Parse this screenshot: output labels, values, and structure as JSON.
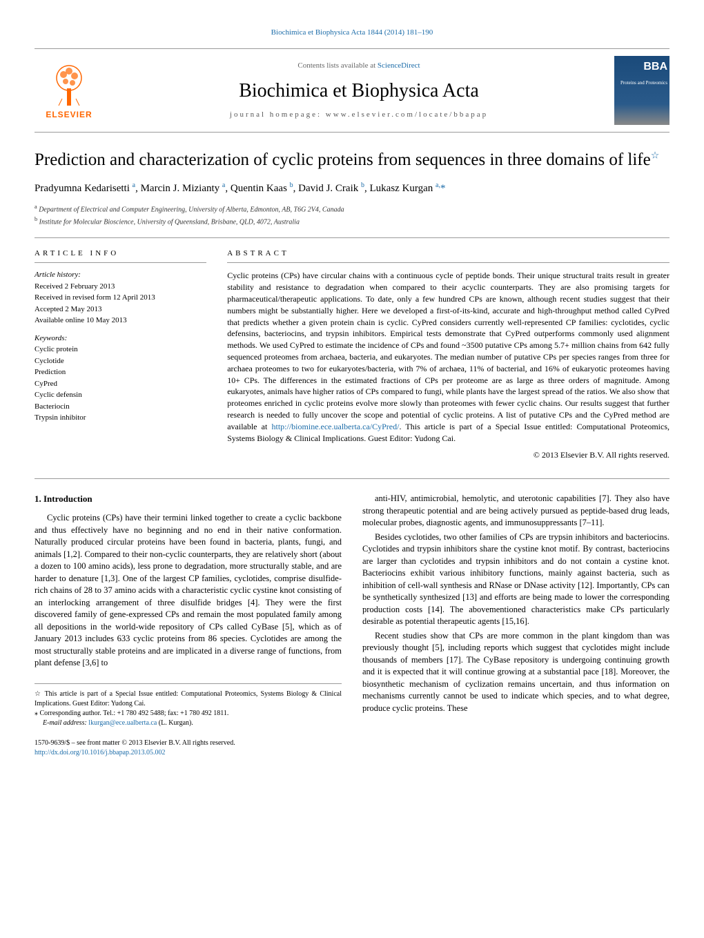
{
  "top_citation": "Biochimica et Biophysica Acta 1844 (2014) 181–190",
  "header": {
    "publisher_logo_text": "ELSEVIER",
    "contents_line_prefix": "Contents lists available at ",
    "contents_link": "ScienceDirect",
    "journal_name": "Biochimica et Biophysica Acta",
    "journal_homepage": "journal homepage: www.elsevier.com/locate/bbapap",
    "cover_brand": "BBA",
    "cover_sub": "Proteins and Proteomics"
  },
  "title": "Prediction and characterization of cyclic proteins from sequences in three domains of life",
  "star_note_marker": "☆",
  "authors_html": "Pradyumna Kedarisetti <sup>a</sup>, Marcin J. Mizianty <sup>a</sup>, Quentin Kaas <sup>b</sup>, David J. Craik <sup>b</sup>, Lukasz Kurgan <sup>a,</sup><span class='corr'>*</span>",
  "affiliations": [
    "a Department of Electrical and Computer Engineering, University of Alberta, Edmonton, AB, T6G 2V4, Canada",
    "b Institute for Molecular Bioscience, University of Queensland, Brisbane, QLD, 4072, Australia"
  ],
  "article_info": {
    "heading": "ARTICLE INFO",
    "history_label": "Article history:",
    "history": [
      "Received 2 February 2013",
      "Received in revised form 12 April 2013",
      "Accepted 2 May 2013",
      "Available online 10 May 2013"
    ],
    "keywords_label": "Keywords:",
    "keywords": [
      "Cyclic protein",
      "Cyclotide",
      "Prediction",
      "CyPred",
      "Cyclic defensin",
      "Bacteriocin",
      "Trypsin inhibitor"
    ]
  },
  "abstract": {
    "heading": "ABSTRACT",
    "text": "Cyclic proteins (CPs) have circular chains with a continuous cycle of peptide bonds. Their unique structural traits result in greater stability and resistance to degradation when compared to their acyclic counterparts. They are also promising targets for pharmaceutical/therapeutic applications. To date, only a few hundred CPs are known, although recent studies suggest that their numbers might be substantially higher. Here we developed a first-of-its-kind, accurate and high-throughput method called CyPred that predicts whether a given protein chain is cyclic. CyPred considers currently well-represented CP families: cyclotides, cyclic defensins, bacteriocins, and trypsin inhibitors. Empirical tests demonstrate that CyPred outperforms commonly used alignment methods. We used CyPred to estimate the incidence of CPs and found ~3500 putative CPs among 5.7+ million chains from 642 fully sequenced proteomes from archaea, bacteria, and eukaryotes. The median number of putative CPs per species ranges from three for archaea proteomes to two for eukaryotes/bacteria, with 7% of archaea, 11% of bacterial, and 16% of eukaryotic proteomes having 10+ CPs. The differences in the estimated fractions of CPs per proteome are as large as three orders of magnitude. Among eukaryotes, animals have higher ratios of CPs compared to fungi, while plants have the largest spread of the ratios. We also show that proteomes enriched in cyclic proteins evolve more slowly than proteomes with fewer cyclic chains. Our results suggest that further research is needed to fully uncover the scope and potential of cyclic proteins. A list of putative CPs and the CyPred method are available at ",
    "link": "http://biomine.ece.ualberta.ca/CyPred/",
    "text_after": ". This article is part of a Special Issue entitled: Computational Proteomics, Systems Biology & Clinical Implications. Guest Editor: Yudong Cai.",
    "copyright": "© 2013 Elsevier B.V. All rights reserved."
  },
  "intro": {
    "heading": "1. Introduction",
    "col1_p1": "Cyclic proteins (CPs) have their termini linked together to create a cyclic backbone and thus effectively have no beginning and no end in their native conformation. Naturally produced circular proteins have been found in bacteria, plants, fungi, and animals [1,2]. Compared to their non-cyclic counterparts, they are relatively short (about a dozen to 100 amino acids), less prone to degradation, more structurally stable, and are harder to denature [1,3]. One of the largest CP families, cyclotides, comprise disulfide-rich chains of 28 to 37 amino acids with a characteristic cyclic cystine knot consisting of an interlocking arrangement of three disulfide bridges [4]. They were the first discovered family of gene-expressed CPs and remain the most populated family among all depositions in the world-wide repository of CPs called CyBase [5], which as of January 2013 includes 633 cyclic proteins from 86 species. Cyclotides are among the most structurally stable proteins and are implicated in a diverse range of functions, from plant defense [3,6] to",
    "col2_p1": "anti-HIV, antimicrobial, hemolytic, and uterotonic capabilities [7]. They also have strong therapeutic potential and are being actively pursued as peptide-based drug leads, molecular probes, diagnostic agents, and immunosuppressants [7–11].",
    "col2_p2": "Besides cyclotides, two other families of CPs are trypsin inhibitors and bacteriocins. Cyclotides and trypsin inhibitors share the cystine knot motif. By contrast, bacteriocins are larger than cyclotides and trypsin inhibitors and do not contain a cystine knot. Bacteriocins exhibit various inhibitory functions, mainly against bacteria, such as inhibition of cell-wall synthesis and RNase or DNase activity [12]. Importantly, CPs can be synthetically synthesized [13] and efforts are being made to lower the corresponding production costs [14]. The abovementioned characteristics make CPs particularly desirable as potential therapeutic agents [15,16].",
    "col2_p3": "Recent studies show that CPs are more common in the plant kingdom than was previously thought [5], including reports which suggest that cyclotides might include thousands of members [17]. The CyBase repository is undergoing continuing growth and it is expected that it will continue growing at a substantial pace [18]. Moreover, the biosynthetic mechanism of cyclization remains uncertain, and thus information on mechanisms currently cannot be used to indicate which species, and to what degree, produce cyclic proteins. These"
  },
  "footnotes": {
    "star": "☆  This article is part of a Special Issue entitled: Computational Proteomics, Systems Biology & Clinical Implications. Guest Editor: Yudong Cai.",
    "corr": "⁎  Corresponding author. Tel.: +1 780 492 5488; fax: +1 780 492 1811.",
    "email_label": "E-mail address: ",
    "email": "lkurgan@ece.ualberta.ca",
    "email_suffix": " (L. Kurgan)."
  },
  "footer": {
    "issn": "1570-9639/$ – see front matter © 2013 Elsevier B.V. All rights reserved.",
    "doi": "http://dx.doi.org/10.1016/j.bbapap.2013.05.002"
  },
  "colors": {
    "link": "#1a6ba8",
    "elsevier_orange": "#ff6600",
    "border_gray": "#999999"
  }
}
